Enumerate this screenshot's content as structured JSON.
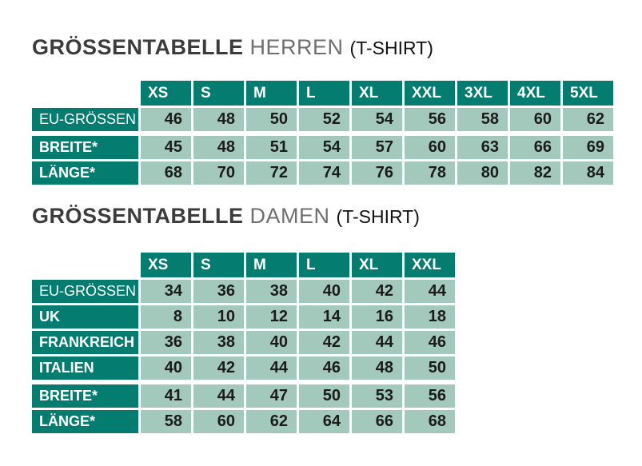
{
  "colors": {
    "page_bg": "#ffffff",
    "header_bg": "#047c70",
    "cell_bg": "#a3c9bc",
    "title_dark": "#3c3c3c",
    "title_light": "#6f6f6f",
    "suffix_text": "#121212",
    "value_text": "#1b1b1b"
  },
  "tables": [
    {
      "id": "herren",
      "title": {
        "main": "GRÖSSENTABELLE",
        "sub": "HERREN",
        "suffix": "(T-SHIRT)"
      },
      "sizes": [
        "XS",
        "S",
        "M",
        "L",
        "XL",
        "XXL",
        "3XL",
        "4XL",
        "5XL"
      ],
      "rows": [
        {
          "label": "EU-GRÖSSEN",
          "light": true,
          "gap_before": false,
          "values": [
            "46",
            "48",
            "50",
            "52",
            "54",
            "56",
            "58",
            "60",
            "62"
          ]
        },
        {
          "label": "BREITE*",
          "light": false,
          "gap_before": true,
          "values": [
            "45",
            "48",
            "51",
            "54",
            "57",
            "60",
            "63",
            "66",
            "69"
          ]
        },
        {
          "label": "LÄNGE*",
          "light": false,
          "gap_before": false,
          "values": [
            "68",
            "70",
            "72",
            "74",
            "76",
            "78",
            "80",
            "82",
            "84"
          ]
        }
      ]
    },
    {
      "id": "damen",
      "title": {
        "main": "GRÖSSENTABELLE",
        "sub": "DAMEN",
        "suffix": "(T-SHIRT)"
      },
      "sizes": [
        "XS",
        "S",
        "M",
        "L",
        "XL",
        "XXL"
      ],
      "rows": [
        {
          "label": "EU-GRÖSSEN",
          "light": true,
          "gap_before": false,
          "values": [
            "34",
            "36",
            "38",
            "40",
            "42",
            "44"
          ]
        },
        {
          "label": "UK",
          "light": false,
          "gap_before": false,
          "values": [
            "8",
            "10",
            "12",
            "14",
            "16",
            "18"
          ]
        },
        {
          "label": "FRANKREICH",
          "light": false,
          "gap_before": false,
          "values": [
            "36",
            "38",
            "40",
            "42",
            "44",
            "46"
          ]
        },
        {
          "label": "ITALIEN",
          "light": false,
          "gap_before": false,
          "values": [
            "40",
            "42",
            "44",
            "46",
            "48",
            "50"
          ]
        },
        {
          "label": "BREITE*",
          "light": false,
          "gap_before": true,
          "values": [
            "41",
            "44",
            "47",
            "50",
            "53",
            "56"
          ]
        },
        {
          "label": "LÄNGE*",
          "light": false,
          "gap_before": false,
          "values": [
            "58",
            "60",
            "62",
            "64",
            "66",
            "68"
          ]
        }
      ]
    }
  ]
}
